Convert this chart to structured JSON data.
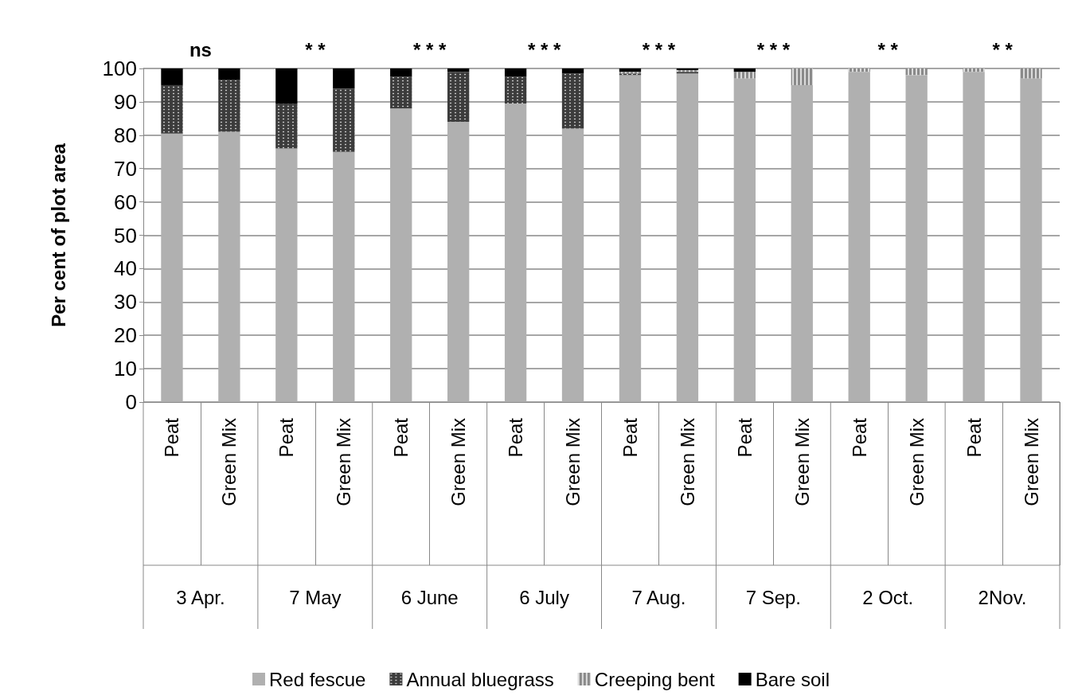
{
  "chart_data": {
    "type": "bar",
    "stacked": true,
    "ylabel": "Per cent of plot area",
    "categories": [
      "Peat",
      "Green Mix",
      "Peat",
      "Green Mix",
      "Peat",
      "Green Mix",
      "Peat",
      "Green Mix",
      "Peat",
      "Green Mix",
      "Peat",
      "Green Mix",
      "Peat",
      "Green Mix",
      "Peat",
      "Green Mix"
    ],
    "series": [
      {
        "name": "Red fescue",
        "color": "#b0b0b0",
        "values": [
          80.5,
          81,
          76,
          75,
          88,
          84,
          89.5,
          82,
          98,
          98.5,
          97,
          95,
          99,
          98,
          99,
          97
        ]
      },
      {
        "name": "Annual bluegrass",
        "color": "#3c3c3c",
        "values": [
          14.5,
          15.5,
          13.5,
          19,
          9.5,
          15,
          8,
          16.5,
          0.5,
          0.5,
          0,
          0,
          0,
          0,
          0,
          0
        ]
      },
      {
        "name": "Creeping bent",
        "color": "#8a8a8a",
        "values": [
          0,
          0,
          0,
          0,
          0,
          0,
          0,
          0,
          0.5,
          0.5,
          2,
          5,
          1,
          2,
          1,
          3
        ]
      },
      {
        "name": "Bare soil",
        "color": "#000000",
        "values": [
          5,
          3.5,
          10.5,
          6,
          2.5,
          1,
          2.5,
          1.5,
          1,
          0.5,
          1,
          0,
          0,
          0,
          0,
          0
        ]
      }
    ],
    "ylim": [
      0,
      100
    ],
    "yticks": [
      0,
      10,
      20,
      30,
      40,
      50,
      60,
      70,
      80,
      90,
      100
    ],
    "grid": "y",
    "legend": "bottom",
    "annotations": [
      "ns",
      "* *",
      "* * *",
      "* * *",
      "* * *",
      "* * *",
      "* *",
      "* *",
      "3 Apr.",
      "7 May",
      "6 June",
      "6 July",
      "7 Aug.",
      "7 Sep.",
      "2 Oct.",
      "2Nov."
    ]
  }
}
